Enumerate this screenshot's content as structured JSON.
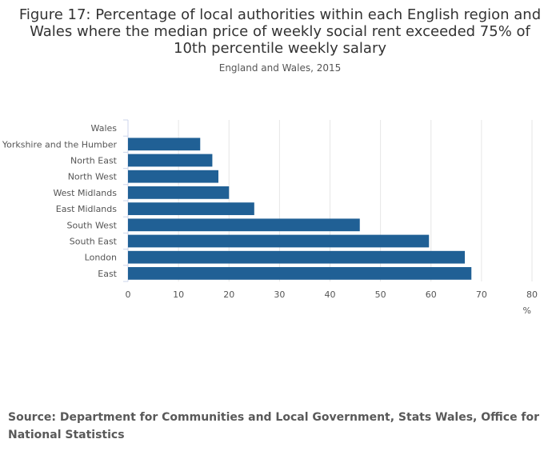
{
  "chart_data": {
    "type": "bar",
    "orientation": "horizontal",
    "title": "Figure 17: Percentage of local authorities within each English region and Wales where the median price of weekly social rent exceeded 75% of 10th percentile weekly salary",
    "subtitle": "England and Wales, 2015",
    "categories": [
      "Wales",
      "Yorkshire and the Humber",
      "North East",
      "North West",
      "West Midlands",
      "East Midlands",
      "South West",
      "South East",
      "London",
      "East"
    ],
    "values": [
      0,
      14.3,
      16.7,
      17.9,
      20.0,
      25.0,
      45.9,
      59.6,
      66.7,
      68.0
    ],
    "xlabel": "%",
    "ylabel": "",
    "xlim": [
      0,
      80
    ],
    "xticks": [
      0,
      10,
      20,
      30,
      40,
      50,
      60,
      70,
      80
    ],
    "grid": true,
    "bar_color": "#206095",
    "grid_color": "#e6e6e6"
  },
  "source": "Source: Department for Communities and Local Government, Stats Wales, Office for National Statistics"
}
